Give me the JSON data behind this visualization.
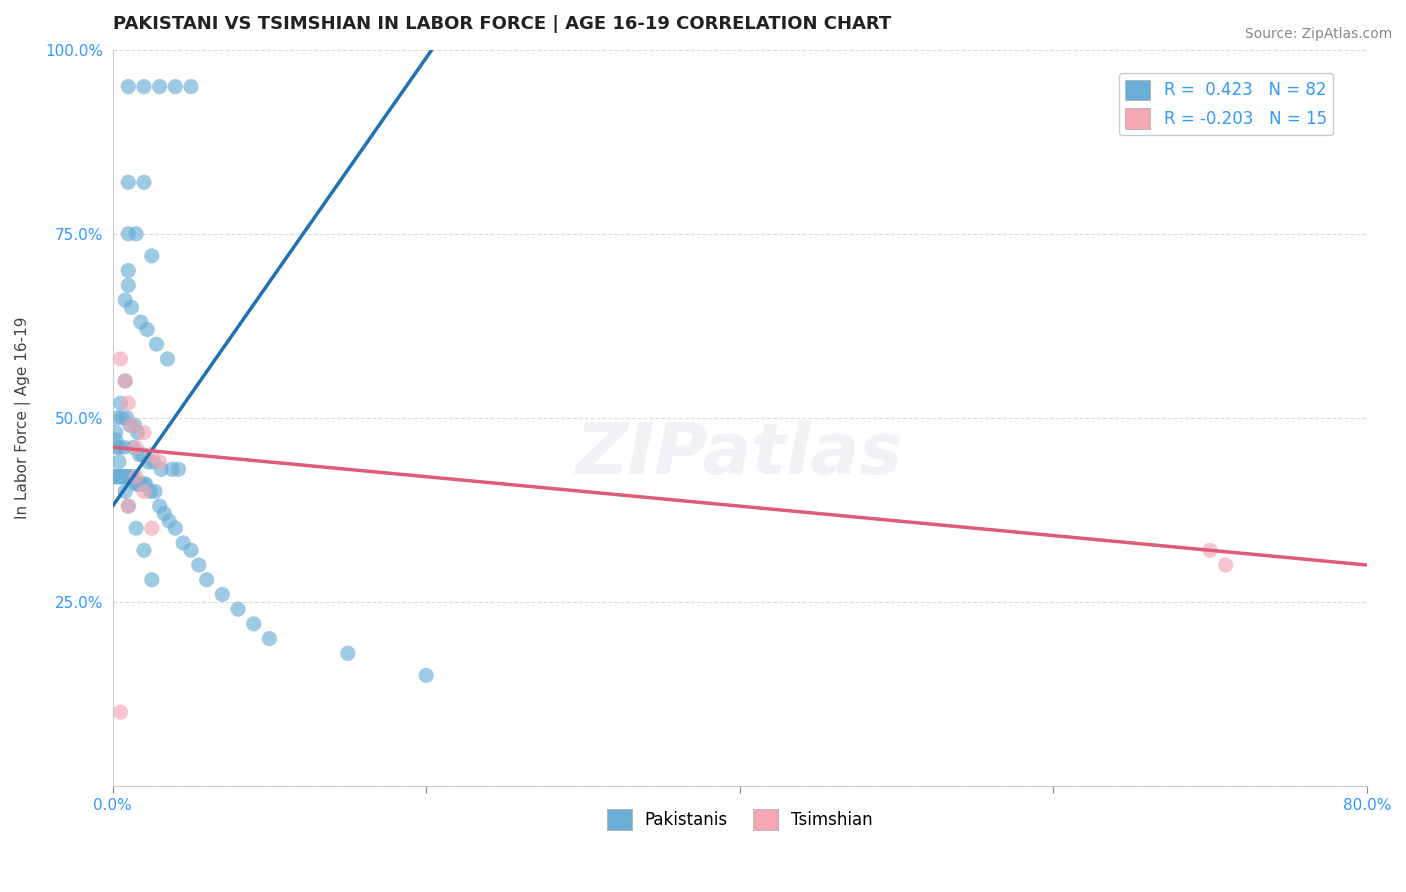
{
  "title": "PAKISTANI VS TSIMSHIAN IN LABOR FORCE | AGE 16-19 CORRELATION CHART",
  "source_text": "Source: ZipAtlas.com",
  "xlabel_text": "",
  "ylabel_text": "In Labor Force | Age 16-19",
  "xlim": [
    0.0,
    0.8
  ],
  "ylim": [
    0.0,
    1.0
  ],
  "xticks": [
    0.0,
    0.2,
    0.4,
    0.6,
    0.8
  ],
  "xticklabels": [
    "0.0%",
    "",
    "",
    "",
    "80.0%"
  ],
  "yticks": [
    0.0,
    0.25,
    0.5,
    0.75,
    1.0
  ],
  "yticklabels": [
    "",
    "25.0%",
    "50.0%",
    "75.0%",
    "100.0%"
  ],
  "blue_R": 0.423,
  "blue_N": 82,
  "pink_R": -0.203,
  "pink_N": 15,
  "blue_color": "#6aaed6",
  "pink_color": "#f4a6b2",
  "blue_line_color": "#2171b5",
  "pink_line_color": "#e05a7a",
  "legend_label_blue": "Pakistanis",
  "legend_label_pink": "Tsimshian",
  "watermark": "ZIPatlas",
  "blue_x": [
    0.01,
    0.02,
    0.03,
    0.04,
    0.05,
    0.01,
    0.02,
    0.01,
    0.015,
    0.025,
    0.01,
    0.01,
    0.008,
    0.012,
    0.018,
    0.022,
    0.028,
    0.035,
    0.008,
    0.005,
    0.003,
    0.006,
    0.009,
    0.011,
    0.014,
    0.016,
    0.002,
    0.004,
    0.007,
    0.013,
    0.017,
    0.019,
    0.023,
    0.026,
    0.031,
    0.038,
    0.042,
    0.001,
    0.001,
    0.002,
    0.003,
    0.004,
    0.005,
    0.006,
    0.007,
    0.008,
    0.009,
    0.01,
    0.011,
    0.012,
    0.013,
    0.015,
    0.016,
    0.017,
    0.018,
    0.02,
    0.021,
    0.024,
    0.027,
    0.03,
    0.033,
    0.036,
    0.04,
    0.045,
    0.05,
    0.055,
    0.06,
    0.07,
    0.08,
    0.09,
    0.1,
    0.15,
    0.2,
    0.002,
    0.003,
    0.004,
    0.005,
    0.008,
    0.01,
    0.015,
    0.02,
    0.025
  ],
  "blue_y": [
    0.95,
    0.95,
    0.95,
    0.95,
    0.95,
    0.82,
    0.82,
    0.75,
    0.75,
    0.72,
    0.7,
    0.68,
    0.66,
    0.65,
    0.63,
    0.62,
    0.6,
    0.58,
    0.55,
    0.52,
    0.5,
    0.5,
    0.5,
    0.49,
    0.49,
    0.48,
    0.47,
    0.46,
    0.46,
    0.46,
    0.45,
    0.45,
    0.44,
    0.44,
    0.43,
    0.43,
    0.43,
    0.42,
    0.42,
    0.42,
    0.42,
    0.42,
    0.42,
    0.42,
    0.42,
    0.42,
    0.42,
    0.42,
    0.42,
    0.42,
    0.42,
    0.41,
    0.41,
    0.41,
    0.41,
    0.41,
    0.41,
    0.4,
    0.4,
    0.38,
    0.37,
    0.36,
    0.35,
    0.33,
    0.32,
    0.3,
    0.28,
    0.26,
    0.24,
    0.22,
    0.2,
    0.18,
    0.15,
    0.48,
    0.46,
    0.44,
    0.42,
    0.4,
    0.38,
    0.35,
    0.32,
    0.28
  ],
  "pink_x": [
    0.005,
    0.008,
    0.01,
    0.012,
    0.015,
    0.02,
    0.025,
    0.03,
    0.015,
    0.02,
    0.01,
    0.025,
    0.005,
    0.7,
    0.71
  ],
  "pink_y": [
    0.58,
    0.55,
    0.52,
    0.49,
    0.46,
    0.48,
    0.45,
    0.44,
    0.42,
    0.4,
    0.38,
    0.35,
    0.1,
    0.32,
    0.3
  ],
  "grid_color": "#cccccc",
  "bg_color": "#ffffff",
  "title_fontsize": 13,
  "axis_label_fontsize": 11,
  "tick_fontsize": 11,
  "legend_fontsize": 12,
  "source_fontsize": 10
}
